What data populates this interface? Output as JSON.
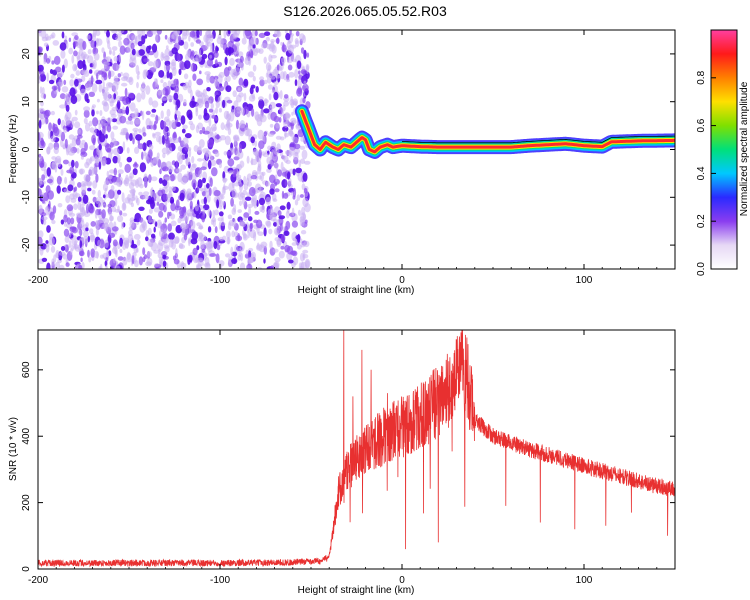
{
  "title": "S126.2026.065.05.52.R03",
  "colors": {
    "snr_line": "#e83030",
    "noise_purple": "#6a1ee0",
    "track_red": "#ff2a2a",
    "colorbar_stops": [
      "#ffffff",
      "#e6d8f5",
      "#8a3df0",
      "#2a2aff",
      "#00c8ff",
      "#00e07a",
      "#7fe000",
      "#ffe000",
      "#ff8000",
      "#ff1a1a",
      "#ff3fa0"
    ]
  },
  "chart_data": [
    {
      "type": "heatmap",
      "title": "",
      "xlabel": "Height of straight line (km)",
      "ylabel": "Frequency (Hz)",
      "xlim": [
        -200,
        150
      ],
      "ylim": [
        -25,
        25
      ],
      "x_ticks": [
        -200,
        -100,
        0,
        100
      ],
      "x_tick_labels": [
        "-200",
        "-100",
        "0",
        "100"
      ],
      "y_ticks": [
        -20,
        -10,
        0,
        10,
        20
      ],
      "y_tick_labels": [
        "-20",
        "-10",
        "0",
        "10",
        "20"
      ],
      "noise_region_x": [
        -200,
        -55
      ],
      "track": {
        "x": [
          -55,
          -52,
          -48,
          -45,
          -42,
          -38,
          -35,
          -32,
          -28,
          -25,
          -22,
          -20,
          -18,
          -15,
          -12,
          -8,
          -5,
          0,
          10,
          20,
          40,
          60,
          70,
          80,
          90,
          100,
          110,
          115,
          130,
          150
        ],
        "y": [
          8,
          5,
          1,
          0,
          1.5,
          0.5,
          0,
          1,
          0.5,
          1.5,
          2.5,
          2,
          0,
          -0.5,
          0.5,
          1,
          0.5,
          0.8,
          0.6,
          0.5,
          0.5,
          0.5,
          0.8,
          1,
          1.2,
          0.8,
          0.6,
          1.6,
          1.8,
          1.9
        ]
      },
      "colorbar": {
        "label": "Normalized spectral amplitude",
        "range": [
          0,
          1
        ],
        "ticks": [
          0.0,
          0.2,
          0.4,
          0.6,
          0.8
        ],
        "tick_labels": [
          "0.0",
          "0.2",
          "0.4",
          "0.6",
          "0.8"
        ]
      }
    },
    {
      "type": "line",
      "title": "",
      "xlabel": "Height of straight line (km)",
      "ylabel": "SNR (10 * v/v)",
      "xlim": [
        -200,
        150
      ],
      "ylim": [
        0,
        720
      ],
      "x_ticks": [
        -200,
        -100,
        0,
        100
      ],
      "x_tick_labels": [
        "-200",
        "-100",
        "0",
        "100"
      ],
      "y_ticks": [
        0,
        200,
        400,
        600
      ],
      "y_tick_labels": [
        "0",
        "200",
        "400",
        "600"
      ],
      "envelope": {
        "x": [
          -200,
          -150,
          -100,
          -60,
          -45,
          -40,
          -37,
          -35,
          -32,
          -30,
          -25,
          -20,
          -15,
          -10,
          -5,
          0,
          5,
          10,
          15,
          20,
          25,
          30,
          33,
          36,
          40,
          50,
          60,
          70,
          80,
          90,
          100,
          110,
          120,
          130,
          140,
          150
        ],
        "y": [
          18,
          18,
          18,
          20,
          25,
          40,
          150,
          230,
          260,
          300,
          330,
          360,
          380,
          400,
          420,
          430,
          440,
          460,
          480,
          510,
          540,
          570,
          610,
          570,
          450,
          400,
          380,
          360,
          345,
          330,
          310,
          295,
          280,
          265,
          250,
          240
        ]
      },
      "spikes": [
        {
          "x": -32,
          "y": 720
        },
        {
          "x": -27,
          "y": 520
        },
        {
          "x": -22,
          "y": 660
        },
        {
          "x": -17,
          "y": 600
        },
        {
          "x": -8,
          "y": 530
        },
        {
          "x": 2,
          "y": 60
        },
        {
          "x": 20,
          "y": 80
        },
        {
          "x": 28,
          "y": 590
        },
        {
          "x": 34,
          "y": 630
        },
        {
          "x": 38,
          "y": 420
        },
        {
          "x": 57,
          "y": 190
        },
        {
          "x": 76,
          "y": 140
        },
        {
          "x": 95,
          "y": 120
        },
        {
          "x": 112,
          "y": 130
        },
        {
          "x": 126,
          "y": 170
        },
        {
          "x": 146,
          "y": 100
        }
      ]
    }
  ]
}
